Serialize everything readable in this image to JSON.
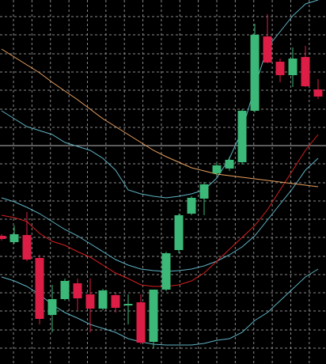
{
  "chart_data": {
    "type": "candlestick",
    "x": [
      0,
      1,
      2,
      3,
      4,
      5,
      6,
      7,
      8,
      9,
      10,
      11,
      12,
      13,
      14,
      15,
      16,
      17,
      18,
      19,
      20,
      21,
      22,
      23,
      24,
      25
    ],
    "open": [
      162,
      154,
      163,
      134,
      62,
      82,
      102,
      88,
      70,
      87,
      74,
      78,
      28,
      94,
      144,
      190,
      209,
      241,
      247,
      255,
      320,
      414,
      382,
      365,
      388,
      347
    ],
    "high": [
      164,
      175,
      192,
      138,
      100,
      108,
      108,
      108,
      95,
      90,
      88,
      88,
      94,
      142,
      190,
      212,
      230,
      254,
      262,
      322,
      430,
      442,
      386,
      400,
      402,
      360
    ],
    "low": [
      156,
      152,
      130,
      50,
      40,
      80,
      68,
      40,
      68,
      65,
      50,
      25,
      20,
      92,
      140,
      188,
      188,
      238,
      244,
      252,
      318,
      380,
      356,
      350,
      350,
      335
    ],
    "close": [
      158,
      164,
      132,
      57,
      82,
      105,
      83,
      70,
      93,
      71,
      76,
      27,
      94,
      140,
      188,
      210,
      227,
      251,
      258,
      320,
      416,
      381,
      365,
      386,
      351,
      338
    ],
    "up_color": "#3cb878",
    "down_color": "#dc1e46",
    "series": [
      {
        "color": "#5fb3c4",
        "values": [
          320,
          310,
          300,
          295,
          290,
          280,
          275,
          270,
          260,
          245,
          220,
          215,
          212,
          210,
          212,
          215,
          220,
          235,
          260,
          295,
          350,
          400,
          420,
          440,
          455,
          460
        ]
      },
      {
        "color": "#5fb3c4",
        "values": [
          210,
          205,
          198,
          190,
          180,
          170,
          162,
          152,
          142,
          132,
          125,
          120,
          118,
          117,
          118,
          120,
          124,
          130,
          138,
          148,
          162,
          182,
          202,
          222,
          245,
          260
        ]
      },
      {
        "color": "#5fb3c4",
        "values": [
          110,
          105,
          98,
          88,
          75,
          65,
          58,
          50,
          45,
          40,
          32,
          28,
          25,
          24,
          24,
          24,
          26,
          30,
          32,
          40,
          55,
          65,
          80,
          95,
          110,
          120
        ]
      },
      {
        "color": "#d42020",
        "values": [
          188,
          185,
          180,
          165,
          155,
          150,
          142,
          135,
          125,
          115,
          108,
          100,
          98,
          98,
          100,
          105,
          115,
          130,
          145,
          160,
          175,
          195,
          220,
          245,
          270,
          290
        ]
      },
      {
        "color": "#e8a060",
        "values": [
          398,
          388,
          378,
          368,
          356,
          345,
          334,
          322,
          310,
          300,
          290,
          280,
          270,
          262,
          255,
          248,
          244,
          240,
          238,
          236,
          234,
          232,
          230,
          228,
          226,
          224
        ]
      }
    ],
    "xlim": [
      -0.125,
      25.625
    ],
    "ylim": [
      0,
      460
    ],
    "xticks": [
      0.94,
      2.4,
      3.86,
      5.32,
      6.78,
      8.24,
      9.7,
      11.16,
      12.62,
      14.08,
      15.54,
      17,
      18.46,
      19.92,
      21.38,
      22.84,
      24.3
    ],
    "yticks": [
      439,
      416,
      392,
      369,
      346,
      322,
      299,
      253,
      229,
      206,
      183,
      160,
      136,
      113,
      90,
      67,
      43,
      20
    ],
    "hlines": [
      276
    ],
    "grid": true,
    "grid_color": "#8a8a8a",
    "hline_color": "#b8b8b8",
    "background": "#000000"
  }
}
